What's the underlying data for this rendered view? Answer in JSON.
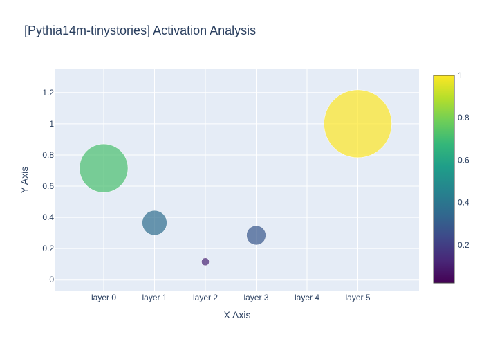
{
  "chart_data": {
    "type": "scatter",
    "title": "[Pythia14m-tinystories] Activation Analysis",
    "xlabel": "X Axis",
    "ylabel": "Y Axis",
    "categories": [
      "layer 0",
      "layer 1",
      "layer 2",
      "layer 3",
      "layer 4",
      "layer 5"
    ],
    "points": [
      {
        "x": "layer 0",
        "y": 0.715,
        "color_value": 0.715
      },
      {
        "x": "layer 1",
        "y": 0.365,
        "color_value": 0.365
      },
      {
        "x": "layer 2",
        "y": 0.115,
        "color_value": 0.115
      },
      {
        "x": "layer 3",
        "y": 0.285,
        "color_value": 0.285
      },
      {
        "x": "layer 5",
        "y": 1.0,
        "color_value": 1.0
      }
    ],
    "yticks": [
      "0",
      "0.2",
      "0.4",
      "0.6",
      "0.8",
      "1",
      "1.2"
    ],
    "ytick_values": [
      0,
      0.2,
      0.4,
      0.6,
      0.8,
      1,
      1.2
    ],
    "ylim": [
      -0.07,
      1.35
    ],
    "colorbar": {
      "colorscale": "Viridis",
      "range": [
        0.02,
        1.0
      ],
      "ticks": [
        "0.2",
        "0.4",
        "0.6",
        "0.8",
        "1"
      ],
      "tick_values": [
        0.2,
        0.4,
        0.6,
        0.8,
        1.0
      ]
    },
    "marker_size_by": "y",
    "marker_opacity": 0.7,
    "grid": true,
    "plot_bgcolor": "#e5ecf6"
  }
}
